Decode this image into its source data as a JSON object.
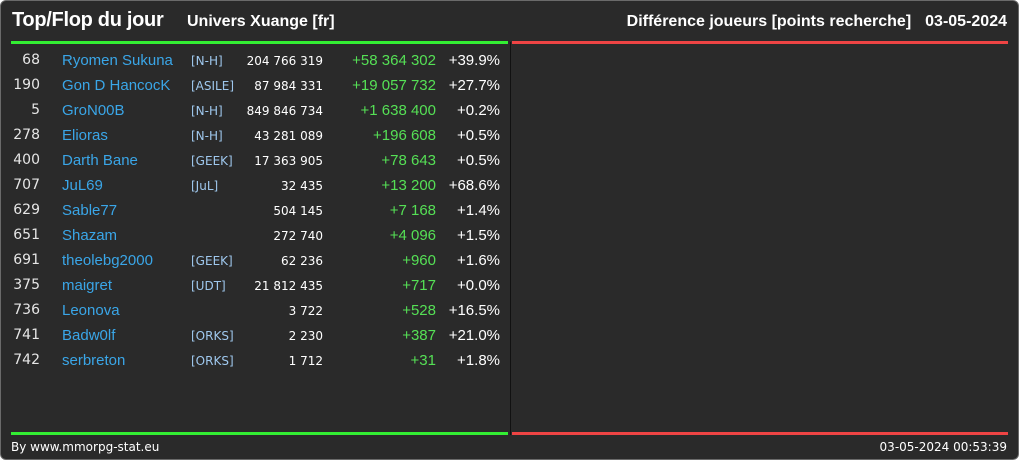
{
  "header": {
    "title": "Top/Flop du jour",
    "universe": "Univers Xuange [fr]",
    "subtitle": "Différence joueurs [points recherche]",
    "date": "03-05-2024"
  },
  "colors": {
    "background": "#2a2a2a",
    "top_accent": "#33ee33",
    "flop_accent": "#ee4444",
    "player_name": "#3aa6e8",
    "alliance": "#9fc8ee",
    "gain": "#55e055",
    "text": "#ffffff"
  },
  "top_rows": [
    {
      "rank": "68",
      "name": "Ryomen Sukuna",
      "alliance": "[N-H]",
      "points": "204 766 319",
      "diff": "+58 364 302",
      "pct": "+39.9%"
    },
    {
      "rank": "190",
      "name": "Gon D HancocK",
      "alliance": "[ASILE]",
      "points": "87 984 331",
      "diff": "+19 057 732",
      "pct": "+27.7%"
    },
    {
      "rank": "5",
      "name": "GroN00B",
      "alliance": "[N-H]",
      "points": "849 846 734",
      "diff": "+1 638 400",
      "pct": "+0.2%"
    },
    {
      "rank": "278",
      "name": "Elioras",
      "alliance": "[N-H]",
      "points": "43 281 089",
      "diff": "+196 608",
      "pct": "+0.5%"
    },
    {
      "rank": "400",
      "name": "Darth Bane",
      "alliance": "[GEEK]",
      "points": "17 363 905",
      "diff": "+78 643",
      "pct": "+0.5%"
    },
    {
      "rank": "707",
      "name": "JuL69",
      "alliance": "[JuL]",
      "points": "32 435",
      "diff": "+13 200",
      "pct": "+68.6%"
    },
    {
      "rank": "629",
      "name": "Sable77",
      "alliance": "",
      "points": "504 145",
      "diff": "+7 168",
      "pct": "+1.4%"
    },
    {
      "rank": "651",
      "name": "Shazam",
      "alliance": "",
      "points": "272 740",
      "diff": "+4 096",
      "pct": "+1.5%"
    },
    {
      "rank": "691",
      "name": "theolebg2000",
      "alliance": "[GEEK]",
      "points": "62 236",
      "diff": "+960",
      "pct": "+1.6%"
    },
    {
      "rank": "375",
      "name": "maigret",
      "alliance": "[UDT]",
      "points": "21 812 435",
      "diff": "+717",
      "pct": "+0.0%"
    },
    {
      "rank": "736",
      "name": "Leonova",
      "alliance": "",
      "points": "3 722",
      "diff": "+528",
      "pct": "+16.5%"
    },
    {
      "rank": "741",
      "name": "Badw0lf",
      "alliance": "[ORKS]",
      "points": "2 230",
      "diff": "+387",
      "pct": "+21.0%"
    },
    {
      "rank": "742",
      "name": "serbreton",
      "alliance": "[ORKS]",
      "points": "1 712",
      "diff": "+31",
      "pct": "+1.8%"
    }
  ],
  "footer": {
    "credit": "By www.mmorpg-stat.eu",
    "timestamp": "03-05-2024 00:53:39"
  }
}
